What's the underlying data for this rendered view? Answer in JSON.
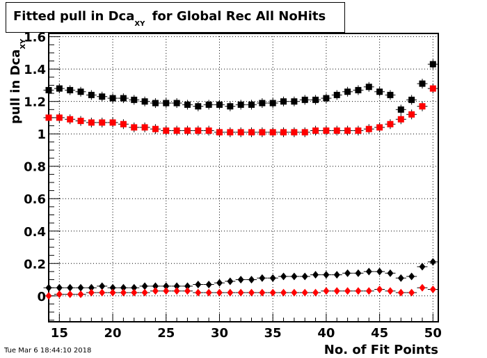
{
  "chart_data": {
    "type": "scatter",
    "title": "Fitted pull in Dca",
    "title_sub": "XY",
    "title_rest": "for Global Rec All NoHits",
    "xlabel": "No. of Fit Points",
    "ylabel": "pull in Dca",
    "ylabel_sub": "XY",
    "xlim": [
      14,
      50.5
    ],
    "ylim": [
      -0.16,
      1.62
    ],
    "x_ticks": [
      15,
      20,
      25,
      30,
      35,
      40,
      45,
      50
    ],
    "y_ticks": [
      0,
      0.2,
      0.4,
      0.6,
      0.8,
      1,
      1.2,
      1.4,
      1.6
    ],
    "y_tick_labels": [
      "0",
      "0.2",
      "0.4",
      "0.6",
      "0.8",
      "1",
      "1.2",
      "1.4",
      "1.6"
    ],
    "grid": true,
    "x": [
      14,
      15,
      16,
      17,
      18,
      19,
      20,
      21,
      22,
      23,
      24,
      25,
      26,
      27,
      28,
      29,
      30,
      31,
      32,
      33,
      34,
      35,
      36,
      37,
      38,
      39,
      40,
      41,
      42,
      43,
      44,
      45,
      46,
      47,
      48,
      49,
      50
    ],
    "series": [
      {
        "marker": "square",
        "color": "#000000",
        "values": [
          1.27,
          1.28,
          1.27,
          1.26,
          1.24,
          1.23,
          1.22,
          1.22,
          1.21,
          1.2,
          1.19,
          1.19,
          1.19,
          1.18,
          1.17,
          1.18,
          1.18,
          1.17,
          1.18,
          1.18,
          1.19,
          1.19,
          1.2,
          1.2,
          1.21,
          1.21,
          1.22,
          1.24,
          1.26,
          1.27,
          1.29,
          1.26,
          1.24,
          1.15,
          1.21,
          1.31,
          1.43
        ]
      },
      {
        "marker": "square",
        "color": "#ff0000",
        "values": [
          1.1,
          1.1,
          1.09,
          1.08,
          1.07,
          1.07,
          1.07,
          1.06,
          1.04,
          1.04,
          1.03,
          1.02,
          1.02,
          1.02,
          1.02,
          1.02,
          1.01,
          1.01,
          1.01,
          1.01,
          1.01,
          1.01,
          1.01,
          1.01,
          1.01,
          1.02,
          1.02,
          1.02,
          1.02,
          1.02,
          1.03,
          1.04,
          1.06,
          1.09,
          1.12,
          1.17,
          1.28
        ]
      },
      {
        "marker": "diamond",
        "color": "#000000",
        "values": [
          0.05,
          0.05,
          0.05,
          0.05,
          0.05,
          0.06,
          0.05,
          0.05,
          0.05,
          0.06,
          0.06,
          0.06,
          0.06,
          0.06,
          0.07,
          0.07,
          0.08,
          0.09,
          0.1,
          0.1,
          0.11,
          0.11,
          0.12,
          0.12,
          0.12,
          0.13,
          0.13,
          0.13,
          0.14,
          0.14,
          0.15,
          0.15,
          0.14,
          0.11,
          0.12,
          0.18,
          0.21
        ]
      },
      {
        "marker": "diamond",
        "color": "#ff0000",
        "values": [
          0.0,
          0.01,
          0.01,
          0.01,
          0.02,
          0.02,
          0.02,
          0.02,
          0.02,
          0.02,
          0.03,
          0.03,
          0.03,
          0.03,
          0.02,
          0.02,
          0.02,
          0.02,
          0.02,
          0.02,
          0.02,
          0.02,
          0.02,
          0.02,
          0.02,
          0.02,
          0.03,
          0.03,
          0.03,
          0.03,
          0.03,
          0.04,
          0.03,
          0.02,
          0.02,
          0.05,
          0.04
        ]
      }
    ]
  },
  "footer": {
    "datestamp": "Tue Mar  6 18:44:10 2018"
  }
}
